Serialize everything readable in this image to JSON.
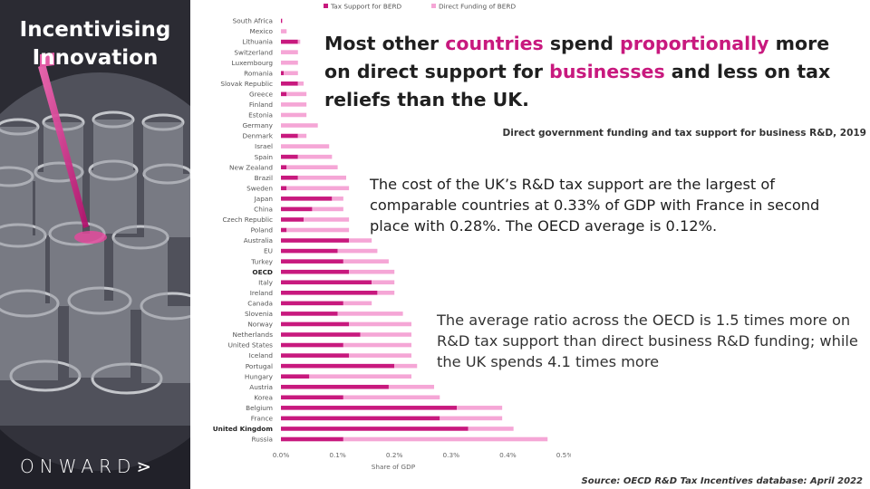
{
  "side_panel": {
    "title_line1": "Incentivising",
    "title_line2": "Innovation",
    "brand": "ONWARD⋗"
  },
  "headline": {
    "part1": "Most other ",
    "hl1": "countries",
    "part2": " spend ",
    "hl2": "proportionally",
    "part3": " more on direct support for ",
    "hl3": "businesses",
    "part4": " and less on tax reliefs than the UK."
  },
  "subtitle": "Direct government funding and tax support for business R&D, 2019",
  "paragraph1": "The cost of the UK’s R&D tax support are the largest of comparable countries at 0.33% of GDP with France in second place with 0.28%. The OECD average is 0.12%.",
  "paragraph2": "The average ratio across the OECD is 1.5 times more on R&D tax support than direct business R&D funding; while the UK spends 4.1 times more",
  "source": "Source: OECD R&D Tax Incentives database: April 2022",
  "colors": {
    "tax": "#c8197e",
    "direct": "#f5a6d6",
    "accent": "#c8197e"
  },
  "chart_data": {
    "type": "bar",
    "orientation": "horizontal",
    "stacked": true,
    "title": "Direct government funding and tax support for business R&D, 2019",
    "xlabel": "Share of GDP",
    "ylabel": "",
    "xlim": [
      0,
      0.5
    ],
    "ticks": [
      0,
      0.1,
      0.2,
      0.3,
      0.4,
      0.5
    ],
    "tick_labels": [
      "0.0%",
      "0.1%",
      "0.2%",
      "0.3%",
      "0.4%",
      "0.5%"
    ],
    "legend": [
      "Tax Support for BERD",
      "Direct Funding of BERD"
    ],
    "legend_position": "top",
    "bold_categories": [
      "OECD",
      "United Kingdom"
    ],
    "categories": [
      "South Africa",
      "Mexico",
      "Lithuania",
      "Switzerland",
      "Luxembourg",
      "Romania",
      "Slovak Republic",
      "Greece",
      "Finland",
      "Estonia",
      "Germany",
      "Denmark",
      "Israel",
      "Spain",
      "New Zealand",
      "Brazil",
      "Sweden",
      "Japan",
      "China",
      "Czech Republic",
      "Poland",
      "Australia",
      "EU",
      "Turkey",
      "OECD",
      "Italy",
      "Ireland",
      "Canada",
      "Slovenia",
      "Norway",
      "Netherlands",
      "United States",
      "Iceland",
      "Portugal",
      "Hungary",
      "Austria",
      "Korea",
      "Belgium",
      "France",
      "United Kingdom",
      "Russia"
    ],
    "series": [
      {
        "name": "Tax Support for BERD",
        "values": [
          0.002,
          0,
          0.03,
          0,
          0,
          0.005,
          0.03,
          0.01,
          0,
          0,
          0,
          0.03,
          0,
          0.03,
          0.01,
          0.03,
          0.01,
          0.09,
          0.055,
          0.04,
          0.01,
          0.12,
          0.1,
          0.11,
          0.12,
          0.16,
          0.17,
          0.11,
          0.1,
          0.12,
          0.14,
          0.11,
          0.12,
          0.2,
          0.05,
          0.19,
          0.11,
          0.31,
          0.28,
          0.33,
          0.11
        ]
      },
      {
        "name": "Direct Funding of BERD",
        "values": [
          0.001,
          0.01,
          0.004,
          0.03,
          0.03,
          0.025,
          0.01,
          0.035,
          0.045,
          0.045,
          0.065,
          0.015,
          0.085,
          0.06,
          0.09,
          0.085,
          0.11,
          0.02,
          0.055,
          0.08,
          0.11,
          0.04,
          0.07,
          0.08,
          0.08,
          0.04,
          0.03,
          0.05,
          0.115,
          0.11,
          0.09,
          0.12,
          0.11,
          0.04,
          0.18,
          0.08,
          0.17,
          0.08,
          0.11,
          0.08,
          0.36
        ]
      }
    ]
  }
}
